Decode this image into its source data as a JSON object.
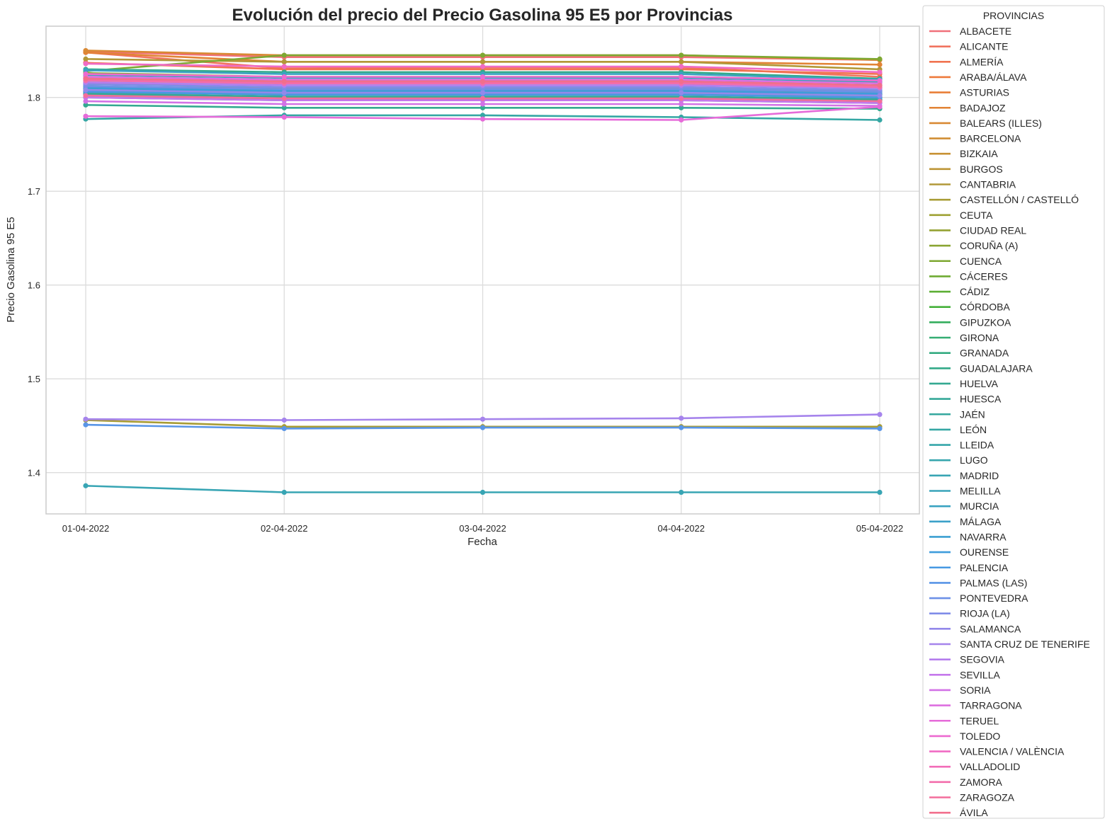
{
  "chart_data": {
    "type": "line",
    "title": "Evolución del precio del Precio Gasolina 95 E5 por Provincias",
    "xlabel": "Fecha",
    "ylabel": "Precio Gasolina 95 E5",
    "x": [
      "01-04-2022",
      "02-04-2022",
      "03-04-2022",
      "04-04-2022",
      "05-04-2022"
    ],
    "yticks": [
      "1.4",
      "1.5",
      "1.6",
      "1.7",
      "1.8"
    ],
    "ylim": [
      1.356,
      1.876
    ],
    "grid": true,
    "legend_title": "PROVINCIAS",
    "legend_position": "outside-right",
    "series": [
      {
        "name": "ALBACETE",
        "color": "#f0707a",
        "values": [
          1.849,
          1.843,
          1.843,
          1.843,
          1.84
        ]
      },
      {
        "name": "ALICANTE",
        "color": "#f1735f",
        "values": [
          1.848,
          1.831,
          1.832,
          1.832,
          1.822
        ]
      },
      {
        "name": "ALMERÍA",
        "color": "#f17350",
        "values": [
          1.837,
          1.83,
          1.83,
          1.83,
          1.825
        ]
      },
      {
        "name": "ARABA/ÁLAVA",
        "color": "#ee7a3b",
        "values": [
          1.822,
          1.818,
          1.818,
          1.818,
          1.813
        ]
      },
      {
        "name": "ASTURIAS",
        "color": "#e97f38",
        "values": [
          1.805,
          1.8,
          1.8,
          1.8,
          1.797
        ]
      },
      {
        "name": "BADAJOZ",
        "color": "#e28335",
        "values": [
          1.848,
          1.838,
          1.838,
          1.838,
          1.835
        ]
      },
      {
        "name": "BALEARS (ILLES)",
        "color": "#d98934",
        "values": [
          1.85,
          1.845,
          1.845,
          1.845,
          1.84
        ]
      },
      {
        "name": "BARCELONA",
        "color": "#d18d34",
        "values": [
          1.822,
          1.818,
          1.818,
          1.818,
          1.816
        ]
      },
      {
        "name": "BIZKAIA",
        "color": "#c79133",
        "values": [
          1.815,
          1.81,
          1.81,
          1.81,
          1.807
        ]
      },
      {
        "name": "BURGOS",
        "color": "#bd9535",
        "values": [
          1.806,
          1.803,
          1.803,
          1.803,
          1.8
        ]
      },
      {
        "name": "CANTABRIA",
        "color": "#b29838",
        "values": [
          1.841,
          1.838,
          1.838,
          1.838,
          1.83
        ]
      },
      {
        "name": "CASTELLÓN / CASTELLÓ",
        "color": "#a89c35",
        "values": [
          1.456,
          1.449,
          1.449,
          1.449,
          1.449
        ]
      },
      {
        "name": "CEUTA",
        "color": "#9ea033",
        "values": [
          1.812,
          1.808,
          1.808,
          1.808,
          1.805
        ]
      },
      {
        "name": "CIUDAD REAL",
        "color": "#94a232",
        "values": [
          1.808,
          1.805,
          1.805,
          1.805,
          1.802
        ]
      },
      {
        "name": "CORUÑA (A)",
        "color": "#8aa532",
        "values": [
          1.826,
          1.822,
          1.822,
          1.822,
          1.818
        ]
      },
      {
        "name": "CUENCA",
        "color": "#7ea832",
        "values": [
          1.828,
          1.845,
          1.845,
          1.845,
          1.841
        ]
      },
      {
        "name": "CÁCERES",
        "color": "#6fab33",
        "values": [
          1.81,
          1.806,
          1.806,
          1.806,
          1.803
        ]
      },
      {
        "name": "CÁDIZ",
        "color": "#5cae34",
        "values": [
          1.803,
          1.8,
          1.8,
          1.8,
          1.797
        ]
      },
      {
        "name": "CÓRDOBA",
        "color": "#44b03a",
        "values": [
          1.806,
          1.803,
          1.803,
          1.803,
          1.8
        ]
      },
      {
        "name": "GIPUZKOA",
        "color": "#35ae5e",
        "values": [
          1.809,
          1.806,
          1.806,
          1.806,
          1.803
        ]
      },
      {
        "name": "GIRONA",
        "color": "#34ad73",
        "values": [
          1.82,
          1.817,
          1.817,
          1.817,
          1.813
        ]
      },
      {
        "name": "GRANADA",
        "color": "#34ab80",
        "values": [
          1.802,
          1.798,
          1.798,
          1.798,
          1.795
        ]
      },
      {
        "name": "GUADALAJARA",
        "color": "#34aa89",
        "values": [
          1.83,
          1.827,
          1.827,
          1.827,
          1.82
        ]
      },
      {
        "name": "HUELVA",
        "color": "#34a991",
        "values": [
          1.792,
          1.789,
          1.789,
          1.789,
          1.788
        ]
      },
      {
        "name": "HUESCA",
        "color": "#35a898",
        "values": [
          1.804,
          1.801,
          1.801,
          1.801,
          1.798
        ]
      },
      {
        "name": "JAÉN",
        "color": "#35a79e",
        "values": [
          1.8,
          1.797,
          1.797,
          1.797,
          1.794
        ]
      },
      {
        "name": "LEÓN",
        "color": "#35a7a4",
        "values": [
          1.777,
          1.781,
          1.781,
          1.779,
          1.776
        ]
      },
      {
        "name": "LLEIDA",
        "color": "#36a6a9",
        "values": [
          1.818,
          1.815,
          1.815,
          1.815,
          1.811
        ]
      },
      {
        "name": "LUGO",
        "color": "#37a6ae",
        "values": [
          1.812,
          1.809,
          1.809,
          1.809,
          1.806
        ]
      },
      {
        "name": "MADRID",
        "color": "#38a5b4",
        "values": [
          1.386,
          1.379,
          1.379,
          1.379,
          1.379
        ]
      },
      {
        "name": "MELILLA",
        "color": "#39a4ba",
        "values": [
          1.824,
          1.821,
          1.821,
          1.821,
          1.817
        ]
      },
      {
        "name": "MURCIA",
        "color": "#3aa3c1",
        "values": [
          1.829,
          1.825,
          1.825,
          1.825,
          1.819
        ]
      },
      {
        "name": "MÁLAGA",
        "color": "#3ba1c9",
        "values": [
          1.808,
          1.805,
          1.805,
          1.805,
          1.802
        ]
      },
      {
        "name": "NAVARRA",
        "color": "#3c9fd2",
        "values": [
          1.816,
          1.813,
          1.813,
          1.813,
          1.81
        ]
      },
      {
        "name": "OURENSE",
        "color": "#3e9cdc",
        "values": [
          1.81,
          1.807,
          1.807,
          1.807,
          1.804
        ]
      },
      {
        "name": "PALENCIA",
        "color": "#4799e3",
        "values": [
          1.806,
          1.803,
          1.803,
          1.803,
          1.8
        ]
      },
      {
        "name": "PALMAS (LAS)",
        "color": "#5995e6",
        "values": [
          1.451,
          1.447,
          1.448,
          1.448,
          1.447
        ]
      },
      {
        "name": "PONTEVEDRA",
        "color": "#6d91e7",
        "values": [
          1.812,
          1.809,
          1.809,
          1.809,
          1.806
        ]
      },
      {
        "name": "RIOJA (LA)",
        "color": "#808ce8",
        "values": [
          1.814,
          1.811,
          1.811,
          1.811,
          1.808
        ]
      },
      {
        "name": "SALAMANCA",
        "color": "#9388ea",
        "values": [
          1.808,
          1.805,
          1.805,
          1.805,
          1.802
        ]
      },
      {
        "name": "SANTA CRUZ DE TENERIFE",
        "color": "#a684ec",
        "values": [
          1.457,
          1.456,
          1.457,
          1.458,
          1.462
        ]
      },
      {
        "name": "SEGOVIA",
        "color": "#b57ded",
        "values": [
          1.816,
          1.813,
          1.813,
          1.813,
          1.81
        ]
      },
      {
        "name": "SEVILLA",
        "color": "#c578ec",
        "values": [
          1.8,
          1.797,
          1.797,
          1.797,
          1.794
        ]
      },
      {
        "name": "SORIA",
        "color": "#d272e6",
        "values": [
          1.796,
          1.793,
          1.793,
          1.793,
          1.791
        ]
      },
      {
        "name": "TARRAGONA",
        "color": "#dd6fe0",
        "values": [
          1.822,
          1.819,
          1.819,
          1.819,
          1.815
        ]
      },
      {
        "name": "TERUEL",
        "color": "#e66bd9",
        "values": [
          1.78,
          1.779,
          1.777,
          1.776,
          1.79
        ]
      },
      {
        "name": "TOLEDO",
        "color": "#ed6ad0",
        "values": [
          1.825,
          1.822,
          1.822,
          1.822,
          1.818
        ]
      },
      {
        "name": "VALENCIA / VALÈNCIA",
        "color": "#f06bc4",
        "values": [
          1.836,
          1.833,
          1.833,
          1.833,
          1.827
        ]
      },
      {
        "name": "VALLADOLID",
        "color": "#f26cb8",
        "values": [
          1.82,
          1.817,
          1.817,
          1.817,
          1.812
        ]
      },
      {
        "name": "ZAMORA",
        "color": "#f36dab",
        "values": [
          1.818,
          1.815,
          1.815,
          1.815,
          1.811
        ]
      },
      {
        "name": "ZARAGOZA",
        "color": "#f36e9c",
        "values": [
          1.802,
          1.799,
          1.799,
          1.799,
          1.796
        ]
      },
      {
        "name": "ÁVILA",
        "color": "#f26f8c",
        "values": [
          1.82,
          1.817,
          1.817,
          1.817,
          1.813
        ]
      }
    ]
  }
}
